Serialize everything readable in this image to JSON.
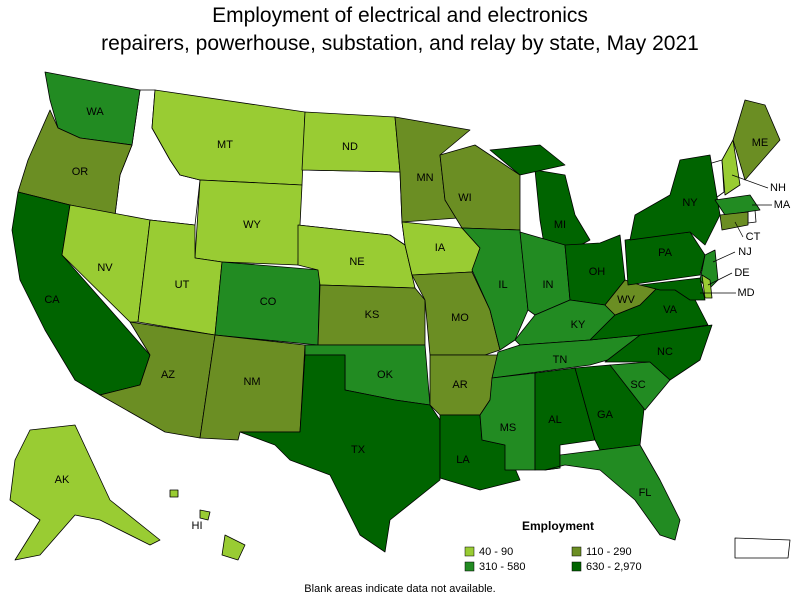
{
  "title": [
    "Employment of electrical and electronics",
    "repairers, powerhouse, substation, and relay by state, May 2021"
  ],
  "legend": {
    "title": "Employment",
    "bins": [
      {
        "label": "40 - 90",
        "color": "#99cc33"
      },
      {
        "label": "110 - 290",
        "color": "#6b8e23"
      },
      {
        "label": "310 - 580",
        "color": "#228b22"
      },
      {
        "label": "630 - 2,970",
        "color": "#006400"
      }
    ]
  },
  "states": [
    {
      "label": "WA",
      "bin": 2
    },
    {
      "label": "OR",
      "bin": 1
    },
    {
      "label": "CA",
      "bin": 3
    },
    {
      "label": "NV",
      "bin": 0
    },
    {
      "label": "MT",
      "bin": 0
    },
    {
      "label": "WY",
      "bin": 0
    },
    {
      "label": "UT",
      "bin": 0
    },
    {
      "label": "AZ",
      "bin": 1
    },
    {
      "label": "CO",
      "bin": 2
    },
    {
      "label": "NM",
      "bin": 1
    },
    {
      "label": "ND",
      "bin": 0
    },
    {
      "label": "NE",
      "bin": 0
    },
    {
      "label": "KS",
      "bin": 1
    },
    {
      "label": "OK",
      "bin": 2
    },
    {
      "label": "TX",
      "bin": 3
    },
    {
      "label": "MN",
      "bin": 1
    },
    {
      "label": "IA",
      "bin": 0
    },
    {
      "label": "MO",
      "bin": 1
    },
    {
      "label": "AR",
      "bin": 1
    },
    {
      "label": "LA",
      "bin": 3
    },
    {
      "label": "WI",
      "bin": 1
    },
    {
      "label": "IL",
      "bin": 2
    },
    {
      "label": "MI",
      "bin": 3
    },
    {
      "label": "IN",
      "bin": 2
    },
    {
      "label": "OH",
      "bin": 3
    },
    {
      "label": "KY",
      "bin": 2
    },
    {
      "label": "TN",
      "bin": 2
    },
    {
      "label": "MS",
      "bin": 2
    },
    {
      "label": "AL",
      "bin": 3
    },
    {
      "label": "GA",
      "bin": 3
    },
    {
      "label": "FL",
      "bin": 2
    },
    {
      "label": "SC",
      "bin": 2
    },
    {
      "label": "NC",
      "bin": 3
    },
    {
      "label": "VA",
      "bin": 3
    },
    {
      "label": "WV",
      "bin": 1
    },
    {
      "label": "PA",
      "bin": 3
    },
    {
      "label": "NY",
      "bin": 3
    },
    {
      "label": "ME",
      "bin": 1
    },
    {
      "label": "NH",
      "bin": 0
    },
    {
      "label": "MA",
      "bin": 2
    },
    {
      "label": "CT",
      "bin": 1
    },
    {
      "label": "NJ",
      "bin": 2
    },
    {
      "label": "DE",
      "bin": 0
    },
    {
      "label": "MD",
      "bin": 3
    },
    {
      "label": "AK",
      "bin": 0
    },
    {
      "label": "HI",
      "bin": 0
    }
  ],
  "note": "Blank areas indicate data not available."
}
